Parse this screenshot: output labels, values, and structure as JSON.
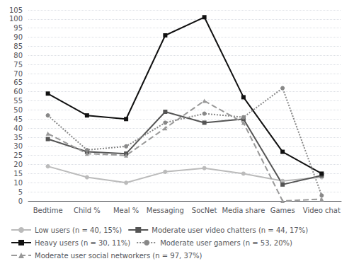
{
  "chart_data": {
    "type": "line",
    "categories": [
      "Bedtime",
      "Child %",
      "Meal %",
      "Messaging",
      "SocNet",
      "Media share",
      "Games",
      "Video chat"
    ],
    "series": [
      {
        "name": "Low users (n = 40, 15%)",
        "color": "#bbbbbb",
        "marker": "circle",
        "line_style": "solid",
        "values": [
          19,
          13,
          10,
          16,
          18,
          15,
          11,
          13
        ]
      },
      {
        "name": "Moderate user video chatters (n = 44, 17%)",
        "color": "#555555",
        "marker": "square",
        "line_style": "solid",
        "values": [
          34,
          27,
          26,
          49,
          43,
          45,
          9,
          14
        ]
      },
      {
        "name": "Heavy users (n = 30, 11%)",
        "color": "#111111",
        "marker": "square",
        "line_style": "solid",
        "values": [
          59,
          47,
          45,
          91,
          101,
          57,
          27,
          15
        ]
      },
      {
        "name": "Moderate user gamers (n = 53, 20%)",
        "color": "#888888",
        "marker": "circle",
        "line_style": "dotted",
        "values": [
          47,
          28,
          30,
          43,
          48,
          46,
          62,
          3
        ]
      },
      {
        "name": "Moderate user social networkers (n = 97, 37%)",
        "color": "#999999",
        "marker": "triangle",
        "line_style": "dashed",
        "values": [
          37,
          26,
          25,
          40,
          55,
          43,
          0,
          1
        ]
      }
    ],
    "ylim": [
      0,
      105
    ],
    "yticks": [
      0,
      5,
      10,
      15,
      20,
      25,
      30,
      35,
      40,
      45,
      50,
      55,
      60,
      65,
      70,
      75,
      80,
      85,
      90,
      95,
      100,
      105
    ],
    "grid": true,
    "legend": "lower left"
  }
}
